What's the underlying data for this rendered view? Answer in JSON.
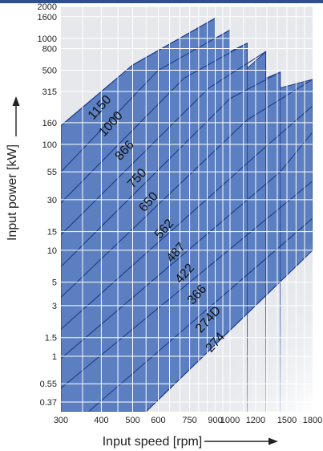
{
  "chart_data": {
    "type": "area",
    "xlabel": "Input speed [rpm]",
    "ylabel": "Input power [kW]",
    "x_scale": "log",
    "y_scale": "log",
    "xlim": [
      300,
      1800
    ],
    "ylim": [
      0.3,
      2000
    ],
    "x_ticks": [
      300,
      400,
      500,
      600,
      750,
      900,
      1000,
      1200,
      1500,
      1800
    ],
    "y_ticks": [
      0.37,
      0.55,
      1,
      1.5,
      3,
      5,
      10,
      15,
      30,
      55,
      100,
      160,
      315,
      500,
      800,
      1000,
      1600,
      2000
    ],
    "grid": true,
    "colors": {
      "fill": "#5b7fc0",
      "line": "#1e3c8c",
      "grid": "#ffffff",
      "background": "#e6e8ec",
      "topbar": "#2f4f8f"
    },
    "upper_envelope": {
      "x": [
        300,
        500,
        900
      ],
      "y": [
        150,
        560,
        1550
      ]
    },
    "series": [
      {
        "name": "1150",
        "x": [
          300,
          500,
          900
        ],
        "y": [
          150,
          560,
          1550
        ]
      },
      {
        "name": "1000",
        "x": [
          300,
          600,
          1000
        ],
        "y": [
          55,
          500,
          1200
        ]
      },
      {
        "name": "866",
        "x": [
          300,
          720,
          1130
        ],
        "y": [
          28,
          420,
          900
        ]
      },
      {
        "name": "750",
        "x": [
          300,
          860,
          1290
        ],
        "y": [
          14,
          340,
          750
        ]
      },
      {
        "name": "650",
        "x": [
          300,
          1000,
          1430
        ],
        "y": [
          7,
          270,
          480
        ]
      },
      {
        "name": "562",
        "x": [
          300,
          1130,
          1800
        ],
        "y": [
          3.6,
          170,
          410
        ]
      },
      {
        "name": "487",
        "x": [
          300,
          1290,
          1800
        ],
        "y": [
          1.8,
          95,
          230
        ]
      },
      {
        "name": "422",
        "x": [
          300,
          1430,
          1800
        ],
        "y": [
          0.95,
          55,
          130
        ]
      },
      {
        "name": "366",
        "x": [
          300,
          1800
        ],
        "y": [
          0.5,
          45
        ]
      },
      {
        "name": "274D",
        "x": [
          365,
          1800
        ],
        "y": [
          0.3,
          20
        ]
      },
      {
        "name": "274",
        "x": [
          550,
          1800
        ],
        "y": [
          0.3,
          10
        ]
      }
    ]
  }
}
